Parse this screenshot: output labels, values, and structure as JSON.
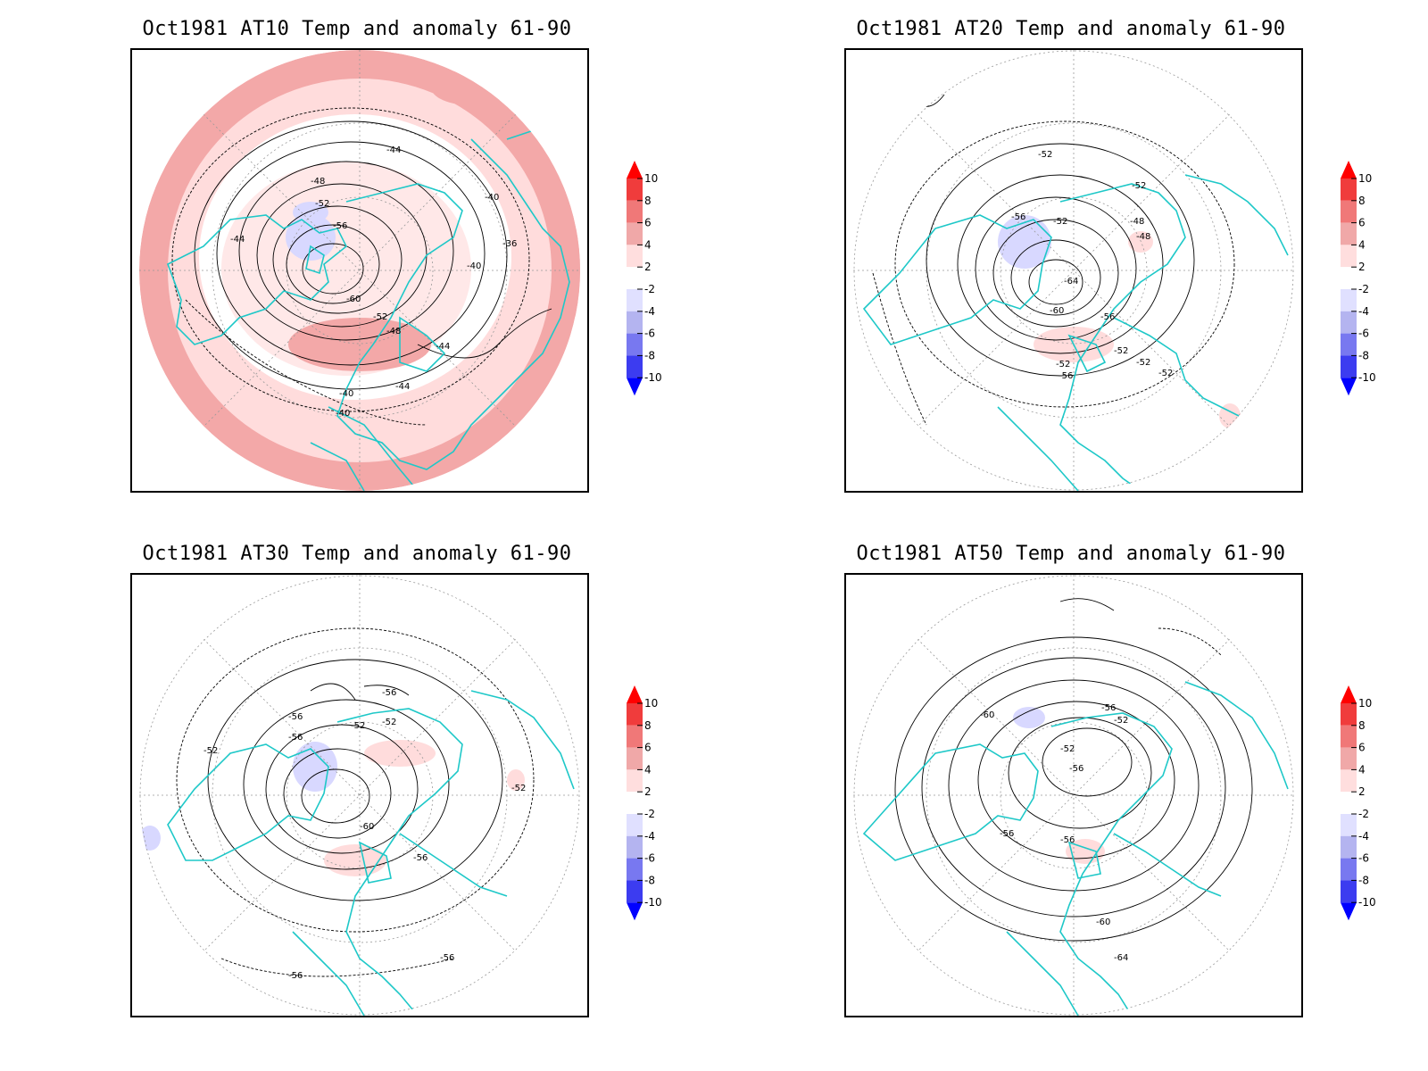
{
  "panels": [
    {
      "title": "Oct1981 AT10 Temp and anomaly 61-90",
      "labels": [
        "-40",
        "-44",
        "-48",
        "-52",
        "-56",
        "-60",
        "-52",
        "-48",
        "-44",
        "-40",
        "-36",
        "-44",
        "-40",
        "-40",
        "-44"
      ]
    },
    {
      "title": "Oct1981 AT20 Temp and anomaly 61-90",
      "labels": [
        "-52",
        "-52",
        "-56",
        "-52",
        "-48",
        "-48",
        "-64",
        "-60",
        "-56",
        "-52",
        "-52",
        "-52",
        "-52",
        "-56"
      ]
    },
    {
      "title": "Oct1981 AT30 Temp and anomaly 61-90",
      "labels": [
        "-56",
        "-56",
        "-56",
        "-52",
        "-52",
        "-52",
        "-60",
        "-56",
        "-52",
        "-56",
        "-56"
      ]
    },
    {
      "title": "Oct1981 AT50 Temp and anomaly 61-90",
      "labels": [
        "-60",
        "-56",
        "-52",
        "-52",
        "-56",
        "-56",
        "-56",
        "-60",
        "-64"
      ]
    }
  ],
  "colorbar": {
    "ticks": [
      "10",
      "8",
      "6",
      "4",
      "2",
      "-2",
      "-4",
      "-6",
      "-8",
      "-10"
    ],
    "colors": [
      "#ff0000",
      "#f03c3c",
      "#f07878",
      "#f0a8a8",
      "#ffdede",
      "#ffffff",
      "#e0e0ff",
      "#b4b4f0",
      "#7878f0",
      "#3c3cf0",
      "#0000ff"
    ]
  },
  "colors": {
    "coast": "#1ec8c8",
    "contour": "#000000",
    "graticule": "#999999"
  },
  "chart_data": [
    {
      "type": "heatmap",
      "title": "Oct1981 AT10 Temp and anomaly 61-90",
      "variable": "temperature with anomaly vs 1961-90",
      "contour_levels": [
        -60,
        -56,
        -52,
        -48,
        -44,
        -40,
        -36
      ],
      "anomaly_levels": [
        -10,
        -8,
        -6,
        -4,
        -2,
        2,
        4,
        6,
        8,
        10
      ]
    },
    {
      "type": "heatmap",
      "title": "Oct1981 AT20 Temp and anomaly 61-90",
      "contour_levels": [
        -64,
        -60,
        -56,
        -52,
        -48
      ],
      "anomaly_levels": [
        -10,
        -8,
        -6,
        -4,
        -2,
        2,
        4,
        6,
        8,
        10
      ]
    },
    {
      "type": "heatmap",
      "title": "Oct1981 AT30 Temp and anomaly 61-90",
      "contour_levels": [
        -60,
        -56,
        -52
      ],
      "anomaly_levels": [
        -10,
        -8,
        -6,
        -4,
        -2,
        2,
        4,
        6,
        8,
        10
      ]
    },
    {
      "type": "heatmap",
      "title": "Oct1981 AT50 Temp and anomaly 61-90",
      "contour_levels": [
        -64,
        -60,
        -56,
        -52
      ],
      "anomaly_levels": [
        -10,
        -8,
        -6,
        -4,
        -2,
        2,
        4,
        6,
        8,
        10
      ]
    }
  ]
}
